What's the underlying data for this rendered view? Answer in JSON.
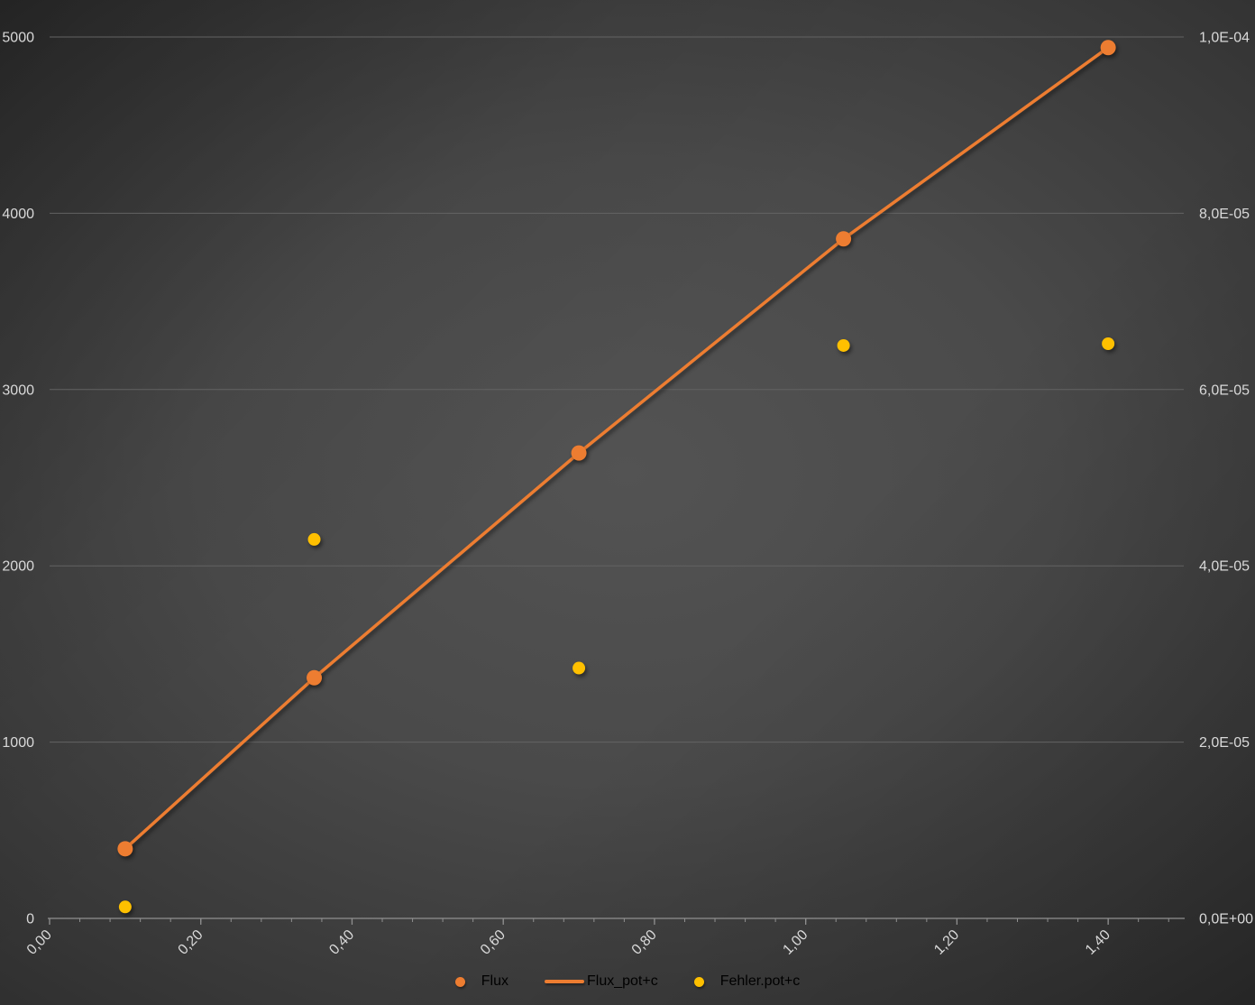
{
  "chart_data": {
    "type": "scatter",
    "title": "",
    "grid": true,
    "legend_position": "bottom",
    "colors": {
      "text": "#D9D9D9",
      "gridline": "#636363",
      "axis": "#909090",
      "orange": "#ED7D31",
      "yellow": "#FFC000"
    },
    "x_axis": {
      "min": 0,
      "max": 1.5,
      "major_unit": 0.2,
      "minor_unit": 0.04,
      "tick_values": [
        0,
        0.2,
        0.4,
        0.6,
        0.8,
        1.0,
        1.2,
        1.4
      ],
      "tick_labels": [
        "0,00",
        "0,20",
        "0,40",
        "0,60",
        "0,80",
        "1,00",
        "1,20",
        "1,40"
      ],
      "label_rotation_deg": -45
    },
    "y_axis_left": {
      "min": 0,
      "max": 5000,
      "major_unit": 1000,
      "tick_values": [
        0,
        1000,
        2000,
        3000,
        4000,
        5000
      ],
      "tick_labels": [
        "0",
        "1000",
        "2000",
        "3000",
        "4000",
        "5000"
      ]
    },
    "y_axis_right": {
      "min": 0,
      "max": 0.0001,
      "major_unit": 2e-05,
      "tick_values": [
        0,
        2e-05,
        4e-05,
        6e-05,
        8e-05,
        0.0001
      ],
      "tick_labels": [
        "0,0E+00",
        "2,0E-05",
        "4,0E-05",
        "6,0E-05",
        "8,0E-05",
        "1,0E-04"
      ]
    },
    "series": [
      {
        "name": "Flux",
        "style": "markers",
        "marker": "circle",
        "marker_radius": 8.5,
        "color": "#ED7D31",
        "axis": "left",
        "x": [
          0.1,
          0.35,
          0.7,
          1.05,
          1.4
        ],
        "y": [
          395,
          1365,
          2640,
          3855,
          4940
        ]
      },
      {
        "name": "Flux_pot+c",
        "style": "line",
        "line_width": 3.5,
        "color": "#ED7D31",
        "axis": "left",
        "x": [
          0.1,
          0.35,
          0.7,
          1.05,
          1.4
        ],
        "y": [
          395,
          1365,
          2640,
          3855,
          4940
        ]
      },
      {
        "name": "Fehler.pot+c",
        "style": "markers",
        "marker": "circle",
        "marker_radius": 7,
        "color": "#FFC000",
        "axis": "right",
        "x": [
          0.1,
          0.35,
          0.7,
          1.05,
          1.4
        ],
        "y": [
          1.3e-06,
          4.3e-05,
          2.84e-05,
          6.5e-05,
          6.52e-05
        ]
      }
    ]
  },
  "legend": {
    "items": [
      {
        "label": "Flux",
        "marker": "circle",
        "color": "#ED7D31"
      },
      {
        "label": "Flux_pot+c",
        "marker": "line",
        "color": "#ED7D31"
      },
      {
        "label": "Fehler.pot+c",
        "marker": "circle",
        "color": "#FFC000"
      }
    ]
  }
}
